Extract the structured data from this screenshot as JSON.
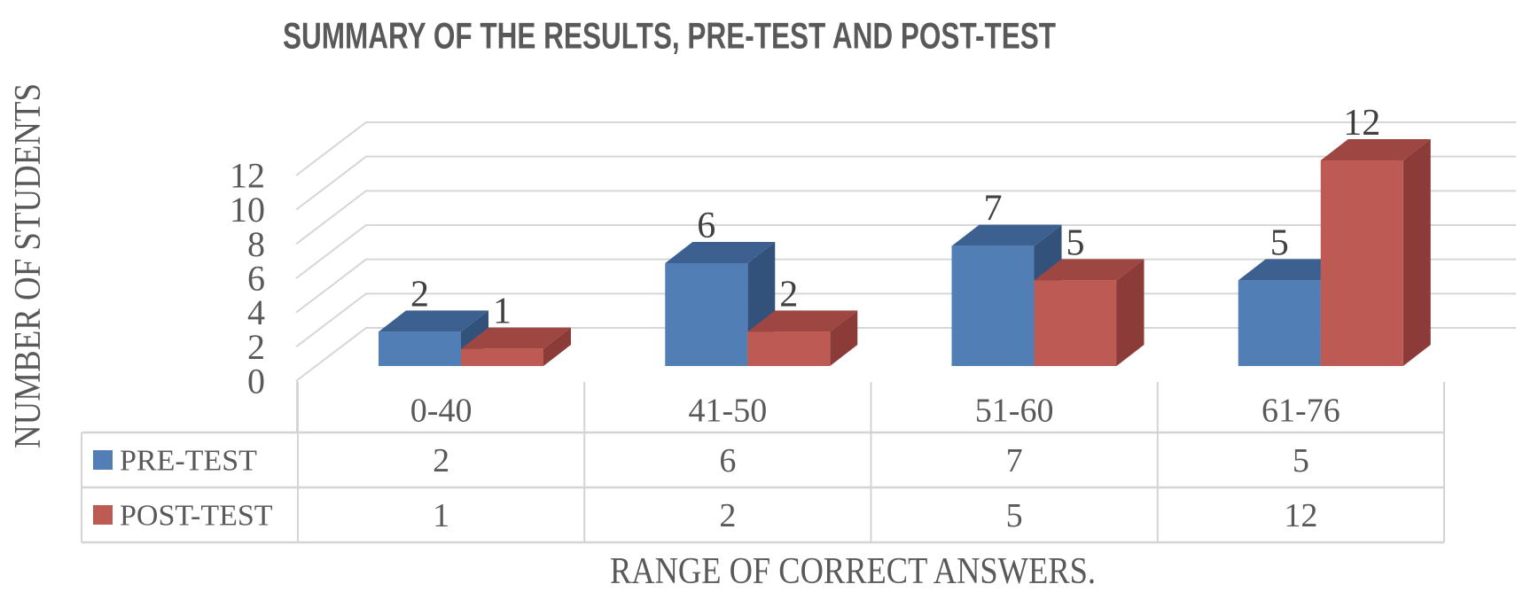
{
  "chart_data": {
    "type": "bar",
    "variant": "3d-clustered-column",
    "title": "SUMMARY OF THE RESULTS, PRE-TEST AND POST-TEST",
    "xlabel": "RANGE OF CORRECT ANSWERS.",
    "ylabel": "NUMBER OF STUDENTS",
    "categories": [
      "0-40",
      "41-50",
      "51-60",
      "61-76"
    ],
    "series": [
      {
        "name": "PRE-TEST",
        "values": [
          2,
          6,
          7,
          5
        ],
        "color": "#527EB6",
        "color_top": "#3C6191",
        "color_side": "#32517B"
      },
      {
        "name": "POST-TEST",
        "values": [
          1,
          2,
          5,
          12
        ],
        "color": "#BC5A53",
        "color_top": "#9E4641",
        "color_side": "#8B3B38"
      }
    ],
    "data_labels": {
      "PRE-TEST": [
        2,
        6,
        7,
        5
      ],
      "POST-TEST": [
        1,
        2,
        5,
        12
      ]
    },
    "y_ticks": [
      0,
      2,
      4,
      6,
      8,
      10,
      12
    ],
    "ylim": [
      0,
      12
    ],
    "grid": true,
    "legend_position": "data-table-left",
    "data_table_shown": true
  },
  "colors": {
    "title_text": "#595959",
    "axis_text": "#595959",
    "data_label_text": "#404040",
    "gridline": "#D6D6D6",
    "table_border": "#D4D4D4",
    "background": "#ffffff"
  }
}
